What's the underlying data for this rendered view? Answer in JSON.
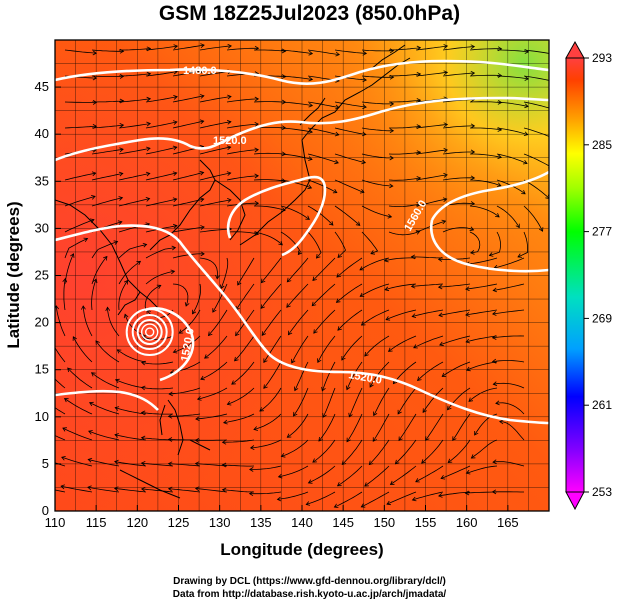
{
  "title": "GSM 18Z25Jul2023 (850.0hPa)",
  "x_axis": {
    "label": "Longitude (degrees)",
    "range": [
      110,
      170
    ],
    "ticks": [
      110,
      115,
      120,
      125,
      130,
      135,
      140,
      145,
      150,
      155,
      160,
      165
    ]
  },
  "y_axis": {
    "label": "Latitude  (degrees)",
    "range": [
      0,
      50
    ],
    "ticks": [
      0,
      5,
      10,
      15,
      20,
      25,
      30,
      35,
      40,
      45
    ]
  },
  "colorbar": {
    "range": [
      253,
      293
    ],
    "ticks": [
      253,
      261,
      269,
      277,
      285,
      293
    ],
    "colors": [
      "#ff00ff",
      "#8000ff",
      "#0000ff",
      "#00a0ff",
      "#00e0c0",
      "#00ff00",
      "#a0ff00",
      "#ffff00",
      "#ffa000",
      "#ff4000",
      "#ff4040"
    ]
  },
  "contours": [
    {
      "label": "1480.0"
    },
    {
      "label": "1520.0"
    },
    {
      "label": "1560.0"
    },
    {
      "label": "1520.0"
    },
    {
      "label": "1520.0"
    }
  ],
  "typhoon_center": {
    "lon": 121.5,
    "lat": 19
  },
  "credits": {
    "line1": "Drawing by DCL (https://www.gfd-dennou.org/library/dcl/)",
    "line2": "Data from http://database.rish.kyoto-u.ac.jp/arch/jmadata/"
  }
}
